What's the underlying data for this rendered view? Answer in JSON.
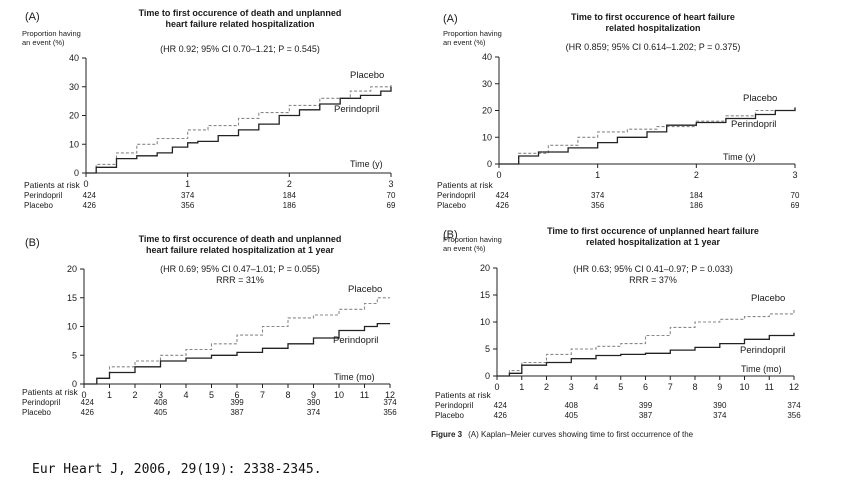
{
  "citation": "Eur Heart J, 2006, 29(19): 2338-2345.",
  "figure_caption": {
    "label": "Figure 3",
    "text": "(A) Kaplan–Meier curves showing time to first occurrence of the"
  },
  "colors": {
    "perindopril": "#222222",
    "placebo": "#888888",
    "axis": "#222222"
  },
  "chart_data": [
    {
      "id": "p1",
      "type": "line",
      "panel_label": "(A)",
      "title_lines": [
        "Time to first occurence of death and unplanned",
        "heart failure related hospitalization"
      ],
      "stats_lines": [
        "(HR 0.92; 95% CI 0.70–1.21; P = 0.545)"
      ],
      "ylabel_lines": [
        "Proportion having",
        "an event (%)"
      ],
      "xlabel": "Time (y)",
      "xlim": [
        0,
        3
      ],
      "ylim": [
        0,
        40
      ],
      "xticks": [
        0,
        1,
        2,
        3
      ],
      "yticks": [
        0,
        10,
        20,
        30,
        40
      ],
      "series": [
        {
          "name": "Placebo",
          "style": "dashed",
          "x": [
            0,
            0.1,
            0.3,
            0.5,
            0.7,
            1.0,
            1.2,
            1.5,
            1.7,
            2.0,
            2.3,
            2.6,
            2.8,
            3.0
          ],
          "y": [
            0,
            3,
            7,
            10,
            12,
            15,
            16.5,
            19,
            21,
            23.5,
            26,
            28.5,
            30,
            31
          ]
        },
        {
          "name": "Perindopril",
          "style": "solid",
          "x": [
            0,
            0.1,
            0.3,
            0.5,
            0.7,
            0.85,
            1.0,
            1.1,
            1.3,
            1.5,
            1.7,
            1.9,
            2.1,
            2.3,
            2.5,
            2.7,
            2.9,
            3.0
          ],
          "y": [
            0,
            2,
            5,
            6,
            7,
            9,
            10.5,
            11,
            13,
            15,
            17,
            20,
            22,
            24,
            26,
            27,
            28.5,
            30
          ]
        }
      ],
      "risk": {
        "header": "Patients at risk",
        "rows": [
          {
            "label": "Perindopril",
            "values": [
              "424",
              "374",
              "184",
              "70"
            ]
          },
          {
            "label": "Placebo",
            "values": [
              "426",
              "356",
              "186",
              "69"
            ]
          }
        ],
        "at": [
          0,
          1,
          2,
          3
        ]
      }
    },
    {
      "id": "p2",
      "type": "line",
      "panel_label": "(A)",
      "title_lines": [
        "Time to first occurence of heart failure",
        "related hospitalization"
      ],
      "stats_lines": [
        "(HR 0.859; 95% CI 0.614–1.202; P = 0.375)"
      ],
      "ylabel_lines": [
        "Proportion having",
        "an event (%)"
      ],
      "xlabel": "Time (y)",
      "xlim": [
        0,
        3
      ],
      "ylim": [
        0,
        40
      ],
      "xticks": [
        0,
        1,
        2,
        3
      ],
      "yticks": [
        0,
        10,
        20,
        30,
        40
      ],
      "series": [
        {
          "name": "Placebo",
          "style": "dashed",
          "x": [
            0,
            0.2,
            0.5,
            0.8,
            1.0,
            1.3,
            1.6,
            2.0,
            2.3,
            2.6,
            3.0
          ],
          "y": [
            0,
            4,
            7,
            10,
            12,
            13,
            14,
            16,
            18,
            20,
            22
          ]
        },
        {
          "name": "Perindopril",
          "style": "solid",
          "x": [
            0,
            0.2,
            0.4,
            0.7,
            1.0,
            1.2,
            1.5,
            1.7,
            2.0,
            2.3,
            2.6,
            2.8,
            3.0
          ],
          "y": [
            0,
            3,
            4.5,
            6,
            8,
            10,
            12,
            14.5,
            15.5,
            17,
            18.5,
            20,
            21
          ]
        }
      ],
      "risk": {
        "header": "Patients at risk",
        "rows": [
          {
            "label": "Perindopril",
            "values": [
              "424",
              "374",
              "184",
              "70"
            ]
          },
          {
            "label": "Placebo",
            "values": [
              "426",
              "356",
              "186",
              "69"
            ]
          }
        ],
        "at": [
          0,
          1,
          2,
          3
        ]
      }
    },
    {
      "id": "p3",
      "type": "line",
      "panel_label": "(B)",
      "title_lines": [
        "Time to first occurence of death and unplanned",
        "heart failure related hospitalization at 1 year"
      ],
      "stats_lines": [
        "(HR 0.69; 95% CI 0.47–1.01; P = 0.055)",
        "RRR = 31%"
      ],
      "ylabel_lines": [],
      "xlabel": "Time (mo)",
      "xlim": [
        0,
        12
      ],
      "ylim": [
        0,
        20
      ],
      "xticks": [
        0,
        1,
        2,
        3,
        4,
        5,
        6,
        7,
        8,
        9,
        10,
        11,
        12
      ],
      "yticks": [
        0,
        5,
        10,
        15,
        20
      ],
      "series": [
        {
          "name": "Placebo",
          "style": "dashed",
          "x": [
            0,
            0.5,
            1,
            2,
            3,
            4,
            5,
            6,
            7,
            8,
            9,
            10,
            11,
            11.5,
            12
          ],
          "y": [
            0,
            1,
            3,
            4,
            5,
            6,
            7,
            8.5,
            10,
            11.5,
            12,
            13,
            14,
            15,
            15
          ]
        },
        {
          "name": "Perindopril",
          "style": "solid",
          "x": [
            0,
            0.5,
            1,
            2,
            3,
            4,
            5,
            6,
            7,
            8,
            9,
            10,
            11,
            11.5,
            12
          ],
          "y": [
            0,
            1,
            2,
            3,
            4,
            4.5,
            5,
            5.5,
            6.2,
            7,
            8,
            9.3,
            10,
            10.5,
            10.5
          ]
        }
      ],
      "risk": {
        "header": "Patients at risk",
        "rows": [
          {
            "label": "Perindopril",
            "values": [
              "424",
              "408",
              "399",
              "390",
              "374"
            ]
          },
          {
            "label": "Placebo",
            "values": [
              "426",
              "405",
              "387",
              "374",
              "356"
            ]
          }
        ],
        "at": [
          0,
          3,
          6,
          9,
          12
        ]
      }
    },
    {
      "id": "p4",
      "type": "line",
      "panel_label": "(B)",
      "title_lines": [
        "Time to first occurence of unplanned heart failure",
        "related hospitalization at 1 year"
      ],
      "stats_lines": [
        "(HR 0.63; 95% CI 0.41–0.97; P = 0.033)",
        "RRR = 37%"
      ],
      "ylabel_lines": [
        "Proportion having",
        "an event (%)"
      ],
      "xlabel": "Time (mo)",
      "xlim": [
        0,
        12
      ],
      "ylim": [
        0,
        20
      ],
      "xticks": [
        0,
        1,
        2,
        3,
        4,
        5,
        6,
        7,
        8,
        9,
        10,
        11,
        12
      ],
      "yticks": [
        0,
        5,
        10,
        15,
        20
      ],
      "series": [
        {
          "name": "Placebo",
          "style": "dashed",
          "x": [
            0,
            0.5,
            1,
            2,
            3,
            4,
            5,
            6,
            7,
            8,
            9,
            10,
            11,
            12
          ],
          "y": [
            0,
            1,
            2.5,
            4,
            5,
            5.5,
            6,
            7.5,
            9,
            10,
            10.5,
            11,
            11.5,
            12.5
          ]
        },
        {
          "name": "Perindopril",
          "style": "solid",
          "x": [
            0,
            0.5,
            1,
            2,
            3,
            4,
            5,
            6,
            7,
            8,
            9,
            10,
            11,
            12
          ],
          "y": [
            0,
            0.5,
            2,
            2.5,
            3.2,
            3.8,
            4,
            4.2,
            4.8,
            5.3,
            6,
            6.8,
            7.5,
            8
          ]
        }
      ],
      "risk": {
        "header": "Patients at risk",
        "rows": [
          {
            "label": "Perindopril",
            "values": [
              "424",
              "408",
              "399",
              "390",
              "374"
            ]
          },
          {
            "label": "Placebo",
            "values": [
              "426",
              "405",
              "387",
              "374",
              "356"
            ]
          }
        ],
        "at": [
          0,
          3,
          6,
          9,
          12
        ]
      }
    }
  ]
}
